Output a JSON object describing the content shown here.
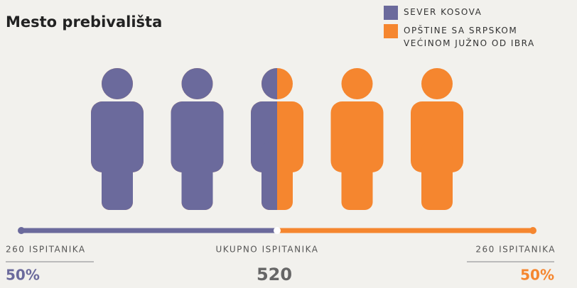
{
  "chart_data": {
    "type": "pictogram",
    "title": "Mesto prebivališta",
    "icons": 5,
    "series": [
      {
        "name": "SEVER KOSOVA",
        "color": "#6b6a9c",
        "values": [
          50
        ],
        "value_labels": [
          "50%"
        ],
        "count_label": "260 ISPITANIKA"
      },
      {
        "name": "OPŠTINE SA SRPSKOM VEĆINOM JUŽNO OD IBRA",
        "color": "#f5862f",
        "values": [
          50
        ],
        "value_labels": [
          "50%"
        ],
        "count_label": "260 ISPITANIKA"
      }
    ],
    "total_label": "UKUPNO ISPITANIKA",
    "total": 520
  }
}
